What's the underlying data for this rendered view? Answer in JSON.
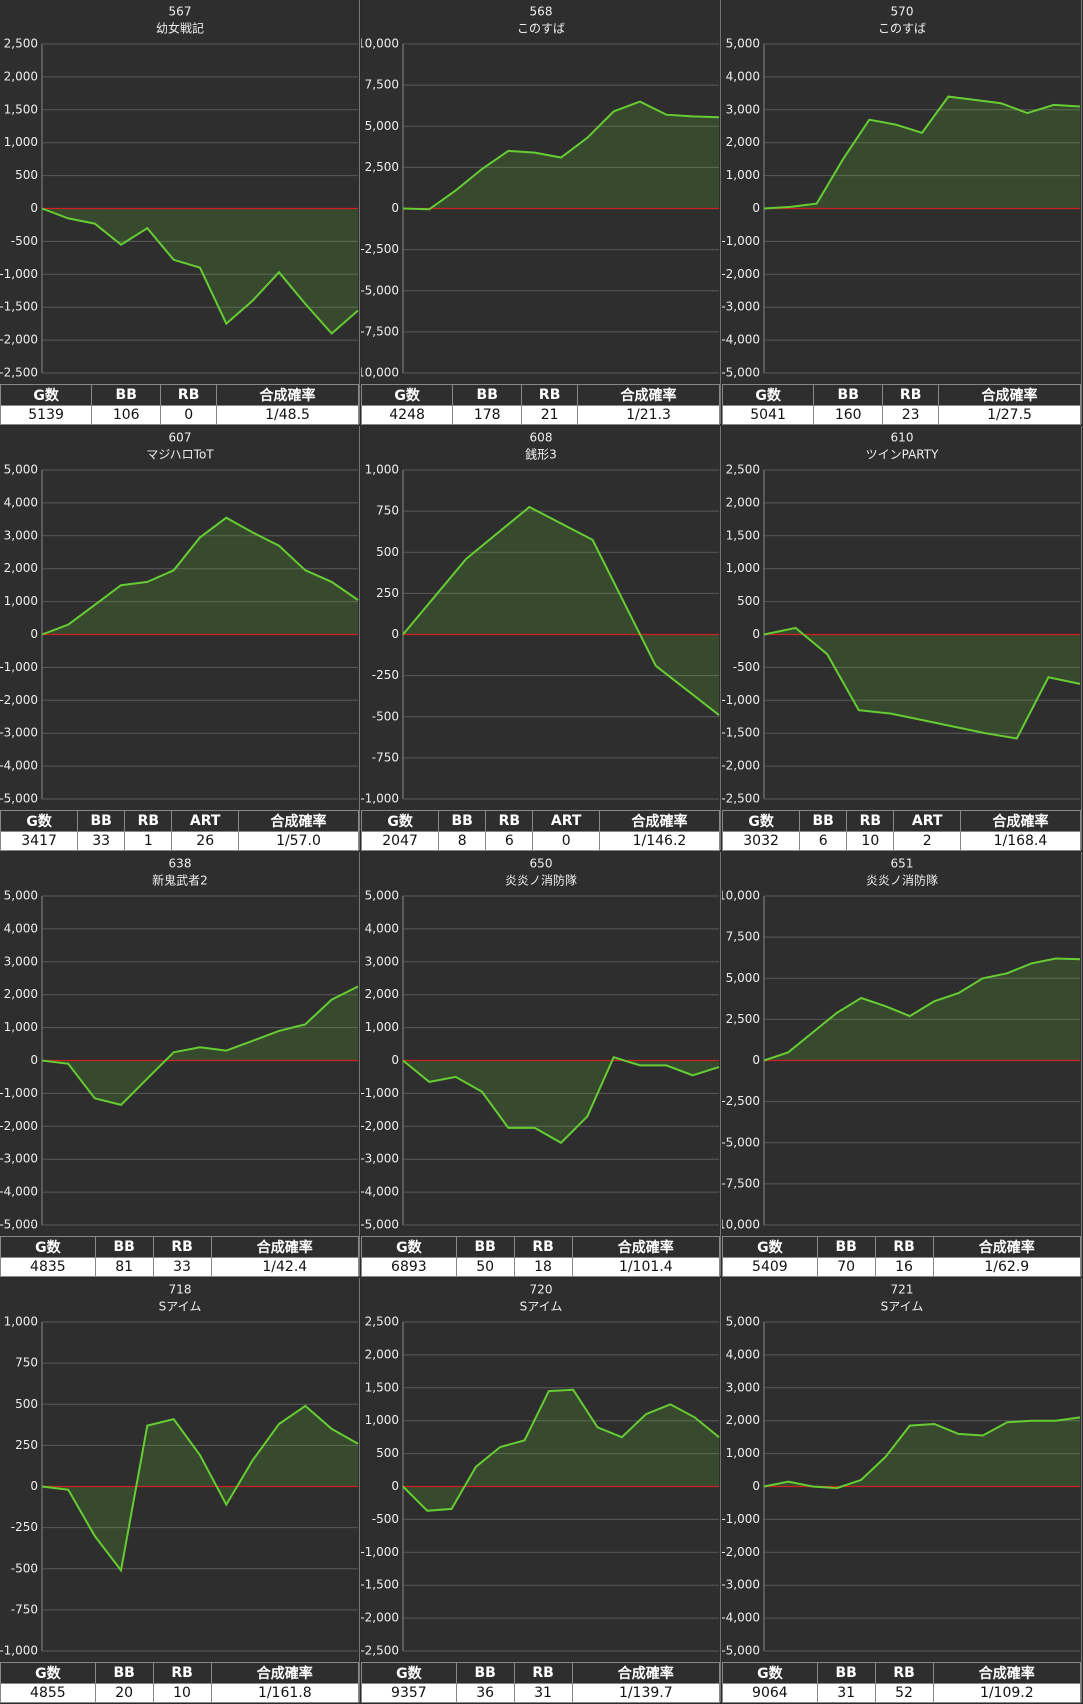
{
  "chart_data": [
    {
      "type": "line",
      "title": "567",
      "subtitle": "幼女戦記",
      "values": [
        0,
        -150,
        -230,
        -550,
        -300,
        -780,
        -900,
        -1750,
        -1400,
        -970,
        -1450,
        -1900,
        -1550
      ],
      "ylim": [
        -2500,
        2500
      ],
      "yticks": [
        {
          "value": 2500,
          "label": "2,500"
        },
        {
          "value": 2000,
          "label": "2,000"
        },
        {
          "value": 1500,
          "label": "1,500"
        },
        {
          "value": 1000,
          "label": "1,000"
        },
        500,
        0,
        -500,
        {
          "value": -1000,
          "label": "-1,000"
        },
        {
          "value": -1500,
          "label": "-1,500"
        },
        {
          "value": -2000,
          "label": "-2,000"
        },
        {
          "value": -2500,
          "label": "-2,500"
        }
      ],
      "color": "#66cc33",
      "table": {
        "header": [
          "G数",
          "BB",
          "RB",
          "合成確率"
        ],
        "row": [
          "5139",
          "106",
          "0",
          "1/48.5"
        ]
      }
    },
    {
      "type": "line",
      "title": "568",
      "subtitle": "このすば",
      "values": [
        0,
        -50,
        1100,
        2400,
        3500,
        3400,
        3100,
        4300,
        5900,
        6500,
        5700,
        5600,
        5550
      ],
      "ylim": [
        -10000,
        10000
      ],
      "yticks": [
        {
          "value": 10000,
          "label": "10,000"
        },
        {
          "value": 7500,
          "label": "7,500"
        },
        {
          "value": 5000,
          "label": "5,000"
        },
        {
          "value": 2500,
          "label": "2,500"
        },
        0,
        {
          "value": -2500,
          "label": "-2,500"
        },
        {
          "value": -5000,
          "label": "-5,000"
        },
        {
          "value": -7500,
          "label": "-7,500"
        },
        {
          "value": -10000,
          "label": "-10,000"
        }
      ],
      "color": "#66cc33",
      "table": {
        "header": [
          "G数",
          "BB",
          "RB",
          "合成確率"
        ],
        "row": [
          "4248",
          "178",
          "21",
          "1/21.3"
        ]
      }
    },
    {
      "type": "line",
      "title": "570",
      "subtitle": "このすば",
      "values": [
        0,
        50,
        150,
        1500,
        2700,
        2550,
        2300,
        3400,
        3300,
        3200,
        2900,
        3150,
        3100
      ],
      "ylim": [
        -5000,
        5000
      ],
      "yticks": [
        {
          "value": 5000,
          "label": "5,000"
        },
        {
          "value": 4000,
          "label": "4,000"
        },
        {
          "value": 3000,
          "label": "3,000"
        },
        {
          "value": 2000,
          "label": "2,000"
        },
        {
          "value": 1000,
          "label": "1,000"
        },
        0,
        {
          "value": -1000,
          "label": "-1,000"
        },
        {
          "value": -2000,
          "label": "-2,000"
        },
        {
          "value": -3000,
          "label": "-3,000"
        },
        {
          "value": -4000,
          "label": "-4,000"
        },
        {
          "value": -5000,
          "label": "-5,000"
        }
      ],
      "color": "#66cc33",
      "table": {
        "header": [
          "G数",
          "BB",
          "RB",
          "合成確率"
        ],
        "row": [
          "5041",
          "160",
          "23",
          "1/27.5"
        ]
      }
    },
    {
      "type": "line",
      "title": "607",
      "subtitle": "マジハロToT",
      "values": [
        0,
        300,
        900,
        1500,
        1600,
        1950,
        2950,
        3550,
        3100,
        2700,
        1950,
        1600,
        1050
      ],
      "ylim": [
        -5000,
        5000
      ],
      "yticks": [
        {
          "value": 5000,
          "label": "5,000"
        },
        {
          "value": 4000,
          "label": "4,000"
        },
        {
          "value": 3000,
          "label": "3,000"
        },
        {
          "value": 2000,
          "label": "2,000"
        },
        {
          "value": 1000,
          "label": "1,000"
        },
        0,
        {
          "value": -1000,
          "label": "-1,000"
        },
        {
          "value": -2000,
          "label": "-2,000"
        },
        {
          "value": -3000,
          "label": "-3,000"
        },
        {
          "value": -4000,
          "label": "-4,000"
        },
        {
          "value": -5000,
          "label": "-5,000"
        }
      ],
      "color": "#66cc33",
      "table": {
        "header": [
          "G数",
          "BB",
          "RB",
          "ART",
          "合成確率"
        ],
        "row": [
          "3417",
          "33",
          "1",
          "26",
          "1/57.0"
        ]
      }
    },
    {
      "type": "line",
      "title": "608",
      "subtitle": "銭形3",
      "values": [
        0,
        460,
        775,
        575,
        -190,
        -490
      ],
      "ylim": [
        -1000,
        1000
      ],
      "yticks": [
        {
          "value": 1000,
          "label": "1,000"
        },
        750,
        500,
        250,
        0,
        -250,
        -500,
        -750,
        {
          "value": -1000,
          "label": "-1,000"
        }
      ],
      "color": "#66cc33",
      "table": {
        "header": [
          "G数",
          "BB",
          "RB",
          "ART",
          "合成確率"
        ],
        "row": [
          "2047",
          "8",
          "6",
          "0",
          "1/146.2"
        ]
      }
    },
    {
      "type": "line",
      "title": "610",
      "subtitle": "ツインPARTY",
      "values": [
        0,
        100,
        -300,
        -1150,
        -1200,
        -1300,
        -1400,
        -1500,
        -1580,
        -650,
        -750
      ],
      "ylim": [
        -2500,
        2500
      ],
      "yticks": [
        {
          "value": 2500,
          "label": "2,500"
        },
        {
          "value": 2000,
          "label": "2,000"
        },
        {
          "value": 1500,
          "label": "1,500"
        },
        {
          "value": 1000,
          "label": "1,000"
        },
        500,
        0,
        -500,
        {
          "value": -1000,
          "label": "-1,000"
        },
        {
          "value": -1500,
          "label": "-1,500"
        },
        {
          "value": -2000,
          "label": "-2,000"
        },
        {
          "value": -2500,
          "label": "-2,500"
        }
      ],
      "color": "#66cc33",
      "table": {
        "header": [
          "G数",
          "BB",
          "RB",
          "ART",
          "合成確率"
        ],
        "row": [
          "3032",
          "6",
          "10",
          "2",
          "1/168.4"
        ]
      }
    },
    {
      "type": "line",
      "title": "638",
      "subtitle": "新鬼武者2",
      "values": [
        0,
        -100,
        -1150,
        -1350,
        -550,
        250,
        400,
        300,
        600,
        900,
        1100,
        1850,
        2250
      ],
      "ylim": [
        -5000,
        5000
      ],
      "yticks": [
        {
          "value": 5000,
          "label": "5,000"
        },
        {
          "value": 4000,
          "label": "4,000"
        },
        {
          "value": 3000,
          "label": "3,000"
        },
        {
          "value": 2000,
          "label": "2,000"
        },
        {
          "value": 1000,
          "label": "1,000"
        },
        0,
        {
          "value": -1000,
          "label": "-1,000"
        },
        {
          "value": -2000,
          "label": "-2,000"
        },
        {
          "value": -3000,
          "label": "-3,000"
        },
        {
          "value": -4000,
          "label": "-4,000"
        },
        {
          "value": -5000,
          "label": "-5,000"
        }
      ],
      "color": "#66cc33",
      "table": {
        "header": [
          "G数",
          "BB",
          "RB",
          "合成確率"
        ],
        "row": [
          "4835",
          "81",
          "33",
          "1/42.4"
        ]
      }
    },
    {
      "type": "line",
      "title": "650",
      "subtitle": "炎炎ノ消防隊",
      "values": [
        0,
        -650,
        -500,
        -950,
        -2050,
        -2050,
        -2500,
        -1700,
        100,
        -150,
        -150,
        -450,
        -200
      ],
      "ylim": [
        -5000,
        5000
      ],
      "yticks": [
        {
          "value": 5000,
          "label": "5,000"
        },
        {
          "value": 4000,
          "label": "4,000"
        },
        {
          "value": 3000,
          "label": "3,000"
        },
        {
          "value": 2000,
          "label": "2,000"
        },
        {
          "value": 1000,
          "label": "1,000"
        },
        0,
        {
          "value": -1000,
          "label": "-1,000"
        },
        {
          "value": -2000,
          "label": "-2,000"
        },
        {
          "value": -3000,
          "label": "-3,000"
        },
        {
          "value": -4000,
          "label": "-4,000"
        },
        {
          "value": -5000,
          "label": "-5,000"
        }
      ],
      "color": "#66cc33",
      "table": {
        "header": [
          "G数",
          "BB",
          "RB",
          "合成確率"
        ],
        "row": [
          "6893",
          "50",
          "18",
          "1/101.4"
        ]
      }
    },
    {
      "type": "line",
      "title": "651",
      "subtitle": "炎炎ノ消防隊",
      "values": [
        0,
        500,
        1700,
        2900,
        3800,
        3300,
        2700,
        3600,
        4100,
        5000,
        5300,
        5900,
        6200,
        6150
      ],
      "ylim": [
        -10000,
        10000
      ],
      "yticks": [
        {
          "value": 10000,
          "label": "10,000"
        },
        {
          "value": 7500,
          "label": "7,500"
        },
        {
          "value": 5000,
          "label": "5,000"
        },
        {
          "value": 2500,
          "label": "2,500"
        },
        0,
        {
          "value": -2500,
          "label": "-2,500"
        },
        {
          "value": -5000,
          "label": "-5,000"
        },
        {
          "value": -7500,
          "label": "-7,500"
        },
        {
          "value": -10000,
          "label": "-10,000"
        }
      ],
      "color": "#66cc33",
      "table": {
        "header": [
          "G数",
          "BB",
          "RB",
          "合成確率"
        ],
        "row": [
          "5409",
          "70",
          "16",
          "1/62.9"
        ]
      }
    },
    {
      "type": "line",
      "title": "718",
      "subtitle": "Sアイム",
      "values": [
        0,
        -20,
        -300,
        -510,
        370,
        410,
        190,
        -110,
        160,
        380,
        490,
        350,
        260
      ],
      "ylim": [
        -1000,
        1000
      ],
      "yticks": [
        {
          "value": 1000,
          "label": "1,000"
        },
        750,
        500,
        250,
        0,
        -250,
        -500,
        -750,
        {
          "value": -1000,
          "label": "-1,000"
        }
      ],
      "color": "#66cc33",
      "table": {
        "header": [
          "G数",
          "BB",
          "RB",
          "合成確率"
        ],
        "row": [
          "4855",
          "20",
          "10",
          "1/161.8"
        ]
      }
    },
    {
      "type": "line",
      "title": "720",
      "subtitle": "Sアイム",
      "values": [
        0,
        -370,
        -340,
        300,
        600,
        700,
        1450,
        1470,
        900,
        750,
        1100,
        1250,
        1050,
        750
      ],
      "ylim": [
        -2500,
        2500
      ],
      "yticks": [
        {
          "value": 2500,
          "label": "2,500"
        },
        {
          "value": 2000,
          "label": "2,000"
        },
        {
          "value": 1500,
          "label": "1,500"
        },
        {
          "value": 1000,
          "label": "1,000"
        },
        500,
        0,
        -500,
        {
          "value": -1000,
          "label": "-1,000"
        },
        {
          "value": -1500,
          "label": "-1,500"
        },
        {
          "value": -2000,
          "label": "-2,000"
        },
        {
          "value": -2500,
          "label": "-2,500"
        }
      ],
      "color": "#66cc33",
      "table": {
        "header": [
          "G数",
          "BB",
          "RB",
          "合成確率"
        ],
        "row": [
          "9357",
          "36",
          "31",
          "1/139.7"
        ]
      }
    },
    {
      "type": "line",
      "title": "721",
      "subtitle": "Sアイム",
      "values": [
        0,
        150,
        0,
        -50,
        200,
        900,
        1850,
        1900,
        1600,
        1550,
        1950,
        2000,
        2000,
        2100
      ],
      "ylim": [
        -5000,
        5000
      ],
      "yticks": [
        {
          "value": 5000,
          "label": "5,000"
        },
        {
          "value": 4000,
          "label": "4,000"
        },
        {
          "value": 3000,
          "label": "3,000"
        },
        {
          "value": 2000,
          "label": "2,000"
        },
        {
          "value": 1000,
          "label": "1,000"
        },
        0,
        {
          "value": -1000,
          "label": "-1,000"
        },
        {
          "value": -2000,
          "label": "-2,000"
        },
        {
          "value": -3000,
          "label": "-3,000"
        },
        {
          "value": -4000,
          "label": "-4,000"
        },
        {
          "value": -5000,
          "label": "-5,000"
        }
      ],
      "color": "#66cc33",
      "table": {
        "header": [
          "G数",
          "BB",
          "RB",
          "合成確率"
        ],
        "row": [
          "9064",
          "31",
          "52",
          "1/109.2"
        ]
      }
    }
  ]
}
